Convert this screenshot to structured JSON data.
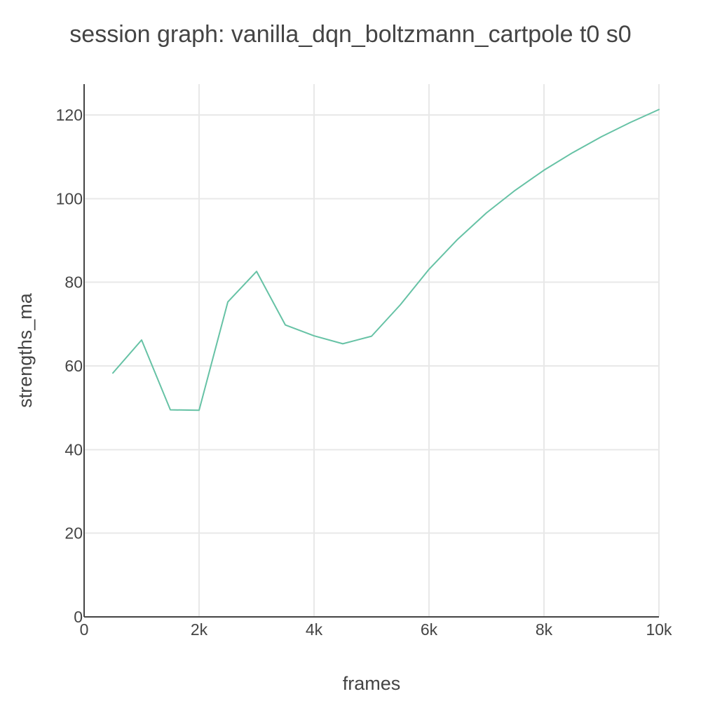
{
  "chart_data": {
    "type": "line",
    "title": "session graph: vanilla_dqn_boltzmann_cartpole t0 s0",
    "xlabel": "frames",
    "ylabel": "strengths_ma",
    "xlim": [
      0,
      10000
    ],
    "ylim": [
      0,
      127
    ],
    "x_ticks": [
      0,
      2000,
      4000,
      6000,
      8000,
      10000
    ],
    "x_tick_labels": [
      "0",
      "2k",
      "4k",
      "6k",
      "8k",
      "10k"
    ],
    "y_ticks": [
      0,
      20,
      40,
      60,
      80,
      100,
      120
    ],
    "y_tick_labels": [
      "0",
      "20",
      "40",
      "60",
      "80",
      "100",
      "120"
    ],
    "grid": true,
    "legend": "none",
    "line_color": "#66c2a5",
    "series": [
      {
        "x": [
          500,
          1000,
          1500,
          2000,
          2500,
          3000,
          3500,
          4000,
          4500,
          5000,
          5500,
          6000,
          6500,
          7000,
          7500,
          8000,
          8500,
          9000,
          9500,
          10000
        ],
        "y": [
          58.3,
          66.2,
          49.5,
          49.4,
          75.3,
          82.6,
          69.8,
          67.2,
          65.3,
          67.1,
          74.6,
          83.1,
          90.3,
          96.6,
          102.0,
          106.8,
          111.0,
          114.8,
          118.2,
          121.3
        ]
      }
    ]
  }
}
